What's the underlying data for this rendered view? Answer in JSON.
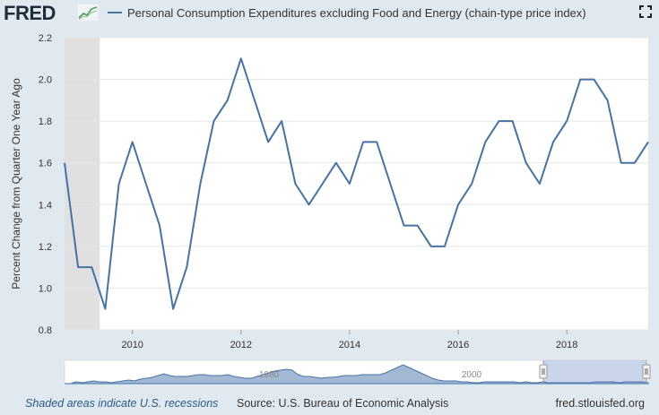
{
  "header": {
    "logo_text": "FRED",
    "fullscreen_icon": "fullscreen-icon"
  },
  "footer": {
    "recession_note": "Shaded areas indicate U.S. recessions",
    "source": "Source: U.S. Bureau of Economic Analysis",
    "site": "fred.stlouisfed.org"
  },
  "navigator": {
    "year_labels": [
      "1980",
      "2000"
    ]
  },
  "chart_data": {
    "type": "line",
    "title": "",
    "ylabel": "Percent Change from Quarter One Year Ago",
    "xlabel": "",
    "ylim": [
      0.8,
      2.2
    ],
    "xlim": [
      2008.75,
      2019.5
    ],
    "y_ticks": [
      "0.8",
      "1.0",
      "1.2",
      "1.4",
      "1.6",
      "1.8",
      "2.0",
      "2.2"
    ],
    "x_ticks": [
      "2010",
      "2012",
      "2014",
      "2016",
      "2018"
    ],
    "grid": true,
    "legend_position": "top-left",
    "recession": {
      "start": 2008.75,
      "end": 2009.4
    },
    "series": [
      {
        "name": "Personal Consumption Expenditures excluding Food and Energy (chain-type price index)",
        "color": "#4572a7",
        "x": [
          2008.75,
          2009.0,
          2009.25,
          2009.5,
          2009.75,
          2010.0,
          2010.25,
          2010.5,
          2010.75,
          2011.0,
          2011.25,
          2011.5,
          2011.75,
          2012.0,
          2012.25,
          2012.5,
          2012.75,
          2013.0,
          2013.25,
          2013.5,
          2013.75,
          2014.0,
          2014.25,
          2014.5,
          2014.75,
          2015.0,
          2015.25,
          2015.5,
          2015.75,
          2016.0,
          2016.25,
          2016.5,
          2016.75,
          2017.0,
          2017.25,
          2017.5,
          2017.75,
          2018.0,
          2018.25,
          2018.5,
          2018.75,
          2019.0,
          2019.25,
          2019.5
        ],
        "values": [
          1.6,
          1.1,
          1.1,
          0.9,
          1.5,
          1.7,
          1.5,
          1.3,
          0.9,
          1.1,
          1.5,
          1.8,
          1.9,
          2.1,
          1.9,
          1.7,
          1.8,
          1.5,
          1.4,
          1.5,
          1.6,
          1.5,
          1.7,
          1.7,
          1.5,
          1.3,
          1.3,
          1.2,
          1.2,
          1.4,
          1.5,
          1.7,
          1.8,
          1.8,
          1.6,
          1.5,
          1.7,
          1.8,
          2.0,
          2.0,
          1.9,
          1.6,
          1.6,
          1.7
        ]
      }
    ]
  }
}
